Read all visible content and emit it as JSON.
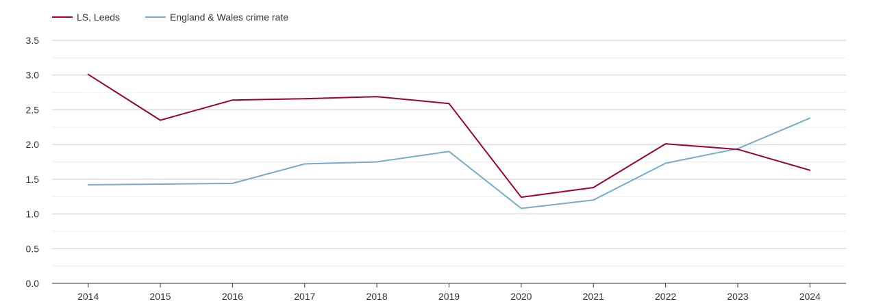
{
  "chart_data": {
    "type": "line",
    "title": "",
    "xlabel": "",
    "ylabel": "",
    "categories": [
      "2014",
      "2015",
      "2016",
      "2017",
      "2018",
      "2019",
      "2020",
      "2021",
      "2022",
      "2023",
      "2024"
    ],
    "ylim": [
      0,
      3.5
    ],
    "yticks": [
      "0.0",
      "0.5",
      "1.0",
      "1.5",
      "2.0",
      "2.5",
      "3.0",
      "3.5"
    ],
    "grid": true,
    "legend_position": "top-left",
    "series": [
      {
        "name": "LS, Leeds",
        "color": "#990033",
        "values": [
          3.01,
          2.35,
          2.64,
          2.66,
          2.69,
          2.59,
          1.24,
          1.38,
          2.01,
          1.93,
          1.63
        ]
      },
      {
        "name": "England & Wales crime rate",
        "color": "#77aacc",
        "values": [
          1.42,
          1.43,
          1.44,
          1.72,
          1.75,
          1.9,
          1.08,
          1.2,
          1.73,
          1.94,
          2.38
        ]
      }
    ]
  }
}
